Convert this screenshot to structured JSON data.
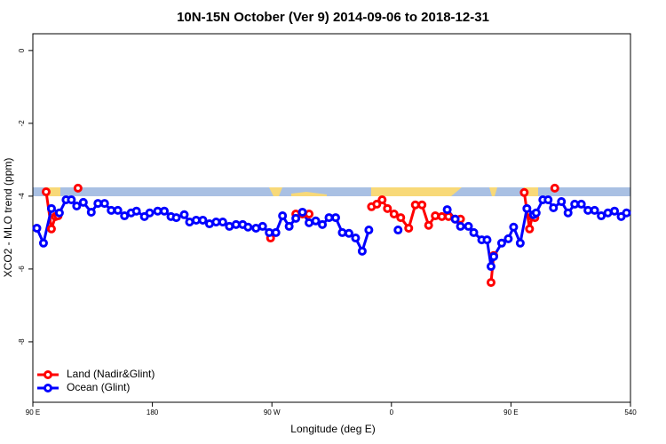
{
  "chart_data": {
    "type": "line",
    "title": "10N-15N October (Ver 9)   2014-09-06 to 2018-12-31",
    "x_label": "Longitude (deg E)",
    "y_label": "XCO2 - MLO trend (ppm)",
    "xlim": [
      90,
      540
    ],
    "ylim": [
      -9.66,
      0.46
    ],
    "xticks": [
      {
        "value": 90,
        "label": "90 E"
      },
      180,
      {
        "value": 270,
        "label": "90 W"
      },
      {
        "value": 360,
        "label": "0"
      },
      {
        "value": 450,
        "label": "90 E"
      },
      540
    ],
    "yticks": [
      0,
      -2,
      -4,
      -6,
      -8
    ],
    "legend": "bottom-left",
    "series": [
      {
        "name": "Land (Nadir&Glint)",
        "color": "#ff0000",
        "x": [
          100,
          104,
          107,
          109,
          null,
          124,
          null,
          269,
          null,
          288,
          293,
          298,
          null,
          345,
          349,
          353,
          357,
          362,
          367,
          373,
          378,
          383,
          388,
          393,
          398,
          403,
          408,
          412,
          null,
          435,
          437,
          null,
          460,
          464,
          466,
          468,
          null,
          483
        ],
        "values": [
          -3.88,
          -4.9,
          -4.56,
          -4.54,
          null,
          -3.78,
          null,
          -5.15,
          null,
          -4.49,
          -4.49,
          -4.49,
          null,
          -4.29,
          -4.22,
          -4.1,
          -4.34,
          -4.49,
          -4.59,
          -4.88,
          -4.24,
          -4.24,
          -4.8,
          -4.54,
          -4.56,
          -4.56,
          -4.63,
          -4.63,
          null,
          -6.37,
          -5.63,
          null,
          -3.9,
          -4.9,
          -4.56,
          -4.59,
          null,
          -3.78
        ]
      },
      {
        "name": "Ocean (Glint)",
        "color": "#0000ff",
        "x": [
          93,
          98,
          104,
          110,
          115,
          119,
          123,
          128,
          134,
          139,
          144,
          149,
          154,
          159,
          164,
          168,
          174,
          178,
          184,
          189,
          194,
          198,
          204,
          208,
          213,
          218,
          223,
          228,
          233,
          238,
          243,
          248,
          252,
          258,
          263,
          268,
          273,
          278,
          283,
          288,
          293,
          298,
          303,
          308,
          313,
          318,
          323,
          328,
          333,
          338,
          343,
          null,
          365,
          null,
          402,
          408,
          412,
          418,
          422,
          428,
          432,
          435,
          437,
          443,
          448,
          452,
          457,
          462,
          467,
          469,
          474,
          478,
          482,
          488,
          493,
          498,
          503,
          508,
          513,
          518,
          523,
          528,
          533,
          537
        ],
        "values": [
          -4.88,
          -5.29,
          -4.34,
          -4.46,
          -4.1,
          -4.1,
          -4.27,
          -4.17,
          -4.44,
          -4.2,
          -4.2,
          -4.39,
          -4.39,
          -4.54,
          -4.46,
          -4.41,
          -4.56,
          -4.46,
          -4.41,
          -4.41,
          -4.56,
          -4.59,
          -4.51,
          -4.71,
          -4.66,
          -4.66,
          -4.76,
          -4.71,
          -4.71,
          -4.83,
          -4.78,
          -4.78,
          -4.85,
          -4.88,
          -4.83,
          -5.0,
          -5.0,
          -4.54,
          -4.83,
          -4.61,
          -4.44,
          -4.73,
          -4.68,
          -4.78,
          -4.59,
          -4.59,
          -5.0,
          -5.02,
          -5.15,
          -5.51,
          -4.93,
          null,
          -4.93,
          null,
          -4.37,
          -4.63,
          -4.83,
          -4.83,
          -5.0,
          -5.2,
          -5.2,
          -5.93,
          -5.66,
          -5.29,
          -5.17,
          -4.85,
          -5.29,
          -4.34,
          -4.51,
          -4.46,
          -4.1,
          -4.1,
          -4.32,
          -4.15,
          -4.46,
          -4.22,
          -4.22,
          -4.39,
          -4.39,
          -4.54,
          -4.46,
          -4.41,
          -4.56,
          -4.46
        ]
      }
    ]
  }
}
